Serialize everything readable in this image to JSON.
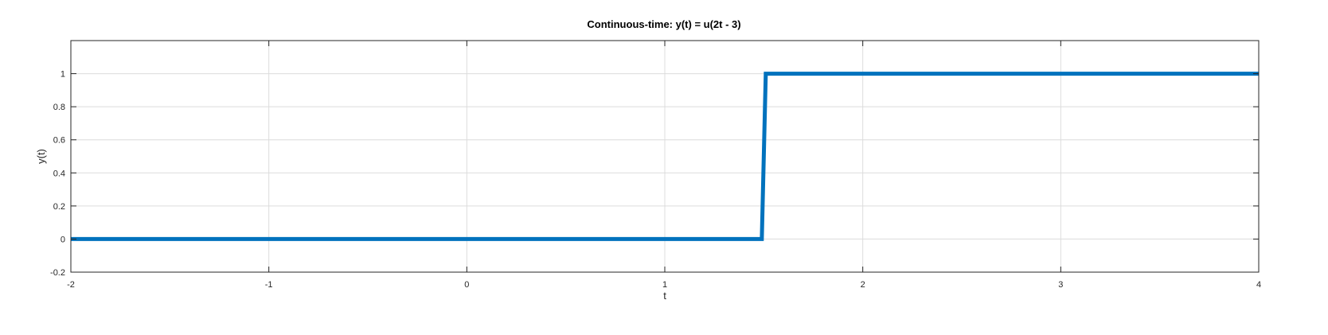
{
  "chart_data": {
    "type": "line",
    "title": "Continuous-time: y(t) = u(2t - 3)",
    "xlabel": "t",
    "ylabel": "y(t)",
    "xlim": [
      -2,
      4
    ],
    "ylim": [
      -0.2,
      1.2
    ],
    "xticks": [
      -2,
      -1,
      0,
      1,
      2,
      3,
      4
    ],
    "yticks": [
      -0.2,
      0,
      0.2,
      0.4,
      0.6,
      0.8,
      1
    ],
    "xtick_labels": [
      "-2",
      "-1",
      "0",
      "1",
      "2",
      "3",
      "4"
    ],
    "ytick_labels": [
      "-0.2",
      "0",
      "0.2",
      "0.4",
      "0.6",
      "0.8",
      "1"
    ],
    "grid": true,
    "series": [
      {
        "color": "#0072bd",
        "x": [
          -2,
          1.49,
          1.51,
          4
        ],
        "y": [
          0,
          0,
          1,
          1
        ]
      }
    ]
  }
}
